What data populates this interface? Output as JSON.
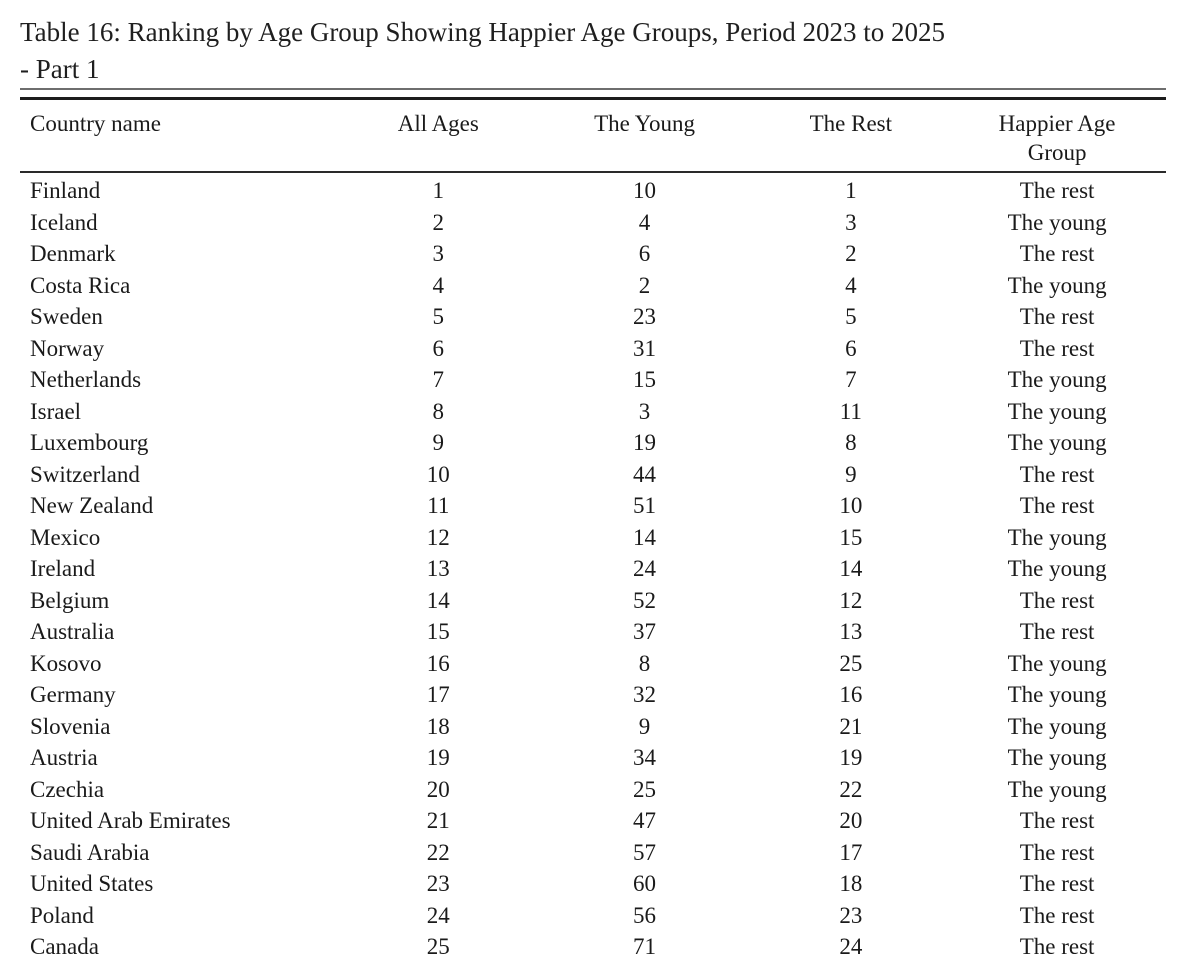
{
  "caption": {
    "line1": "Table 16: Ranking by Age Group Showing Happier Age Groups, Period 2023 to 2025",
    "line2": "- Part 1"
  },
  "colors": {
    "ink": "#1a1a1a",
    "background": "#ffffff"
  },
  "table": {
    "columns": [
      "Country name",
      "All Ages",
      "The Young",
      "The Rest",
      "Happier Age Group"
    ],
    "rows": [
      {
        "country": "Finland",
        "all_ages": 1,
        "the_young": 10,
        "the_rest": 1,
        "happier_age_group": "The rest"
      },
      {
        "country": "Iceland",
        "all_ages": 2,
        "the_young": 4,
        "the_rest": 3,
        "happier_age_group": "The young"
      },
      {
        "country": "Denmark",
        "all_ages": 3,
        "the_young": 6,
        "the_rest": 2,
        "happier_age_group": "The rest"
      },
      {
        "country": "Costa Rica",
        "all_ages": 4,
        "the_young": 2,
        "the_rest": 4,
        "happier_age_group": "The young"
      },
      {
        "country": "Sweden",
        "all_ages": 5,
        "the_young": 23,
        "the_rest": 5,
        "happier_age_group": "The rest"
      },
      {
        "country": "Norway",
        "all_ages": 6,
        "the_young": 31,
        "the_rest": 6,
        "happier_age_group": "The rest"
      },
      {
        "country": "Netherlands",
        "all_ages": 7,
        "the_young": 15,
        "the_rest": 7,
        "happier_age_group": "The young"
      },
      {
        "country": "Israel",
        "all_ages": 8,
        "the_young": 3,
        "the_rest": 11,
        "happier_age_group": "The young"
      },
      {
        "country": "Luxembourg",
        "all_ages": 9,
        "the_young": 19,
        "the_rest": 8,
        "happier_age_group": "The young"
      },
      {
        "country": "Switzerland",
        "all_ages": 10,
        "the_young": 44,
        "the_rest": 9,
        "happier_age_group": "The rest"
      },
      {
        "country": "New Zealand",
        "all_ages": 11,
        "the_young": 51,
        "the_rest": 10,
        "happier_age_group": "The rest"
      },
      {
        "country": "Mexico",
        "all_ages": 12,
        "the_young": 14,
        "the_rest": 15,
        "happier_age_group": "The young"
      },
      {
        "country": "Ireland",
        "all_ages": 13,
        "the_young": 24,
        "the_rest": 14,
        "happier_age_group": "The young"
      },
      {
        "country": "Belgium",
        "all_ages": 14,
        "the_young": 52,
        "the_rest": 12,
        "happier_age_group": "The rest"
      },
      {
        "country": "Australia",
        "all_ages": 15,
        "the_young": 37,
        "the_rest": 13,
        "happier_age_group": "The rest"
      },
      {
        "country": "Kosovo",
        "all_ages": 16,
        "the_young": 8,
        "the_rest": 25,
        "happier_age_group": "The young"
      },
      {
        "country": "Germany",
        "all_ages": 17,
        "the_young": 32,
        "the_rest": 16,
        "happier_age_group": "The young"
      },
      {
        "country": "Slovenia",
        "all_ages": 18,
        "the_young": 9,
        "the_rest": 21,
        "happier_age_group": "The young"
      },
      {
        "country": "Austria",
        "all_ages": 19,
        "the_young": 34,
        "the_rest": 19,
        "happier_age_group": "The young"
      },
      {
        "country": "Czechia",
        "all_ages": 20,
        "the_young": 25,
        "the_rest": 22,
        "happier_age_group": "The young"
      },
      {
        "country": "United Arab Emirates",
        "all_ages": 21,
        "the_young": 47,
        "the_rest": 20,
        "happier_age_group": "The rest"
      },
      {
        "country": "Saudi Arabia",
        "all_ages": 22,
        "the_young": 57,
        "the_rest": 17,
        "happier_age_group": "The rest"
      },
      {
        "country": "United States",
        "all_ages": 23,
        "the_young": 60,
        "the_rest": 18,
        "happier_age_group": "The rest"
      },
      {
        "country": "Poland",
        "all_ages": 24,
        "the_young": 56,
        "the_rest": 23,
        "happier_age_group": "The rest"
      },
      {
        "country": "Canada",
        "all_ages": 25,
        "the_young": 71,
        "the_rest": 24,
        "happier_age_group": "The rest"
      }
    ]
  }
}
